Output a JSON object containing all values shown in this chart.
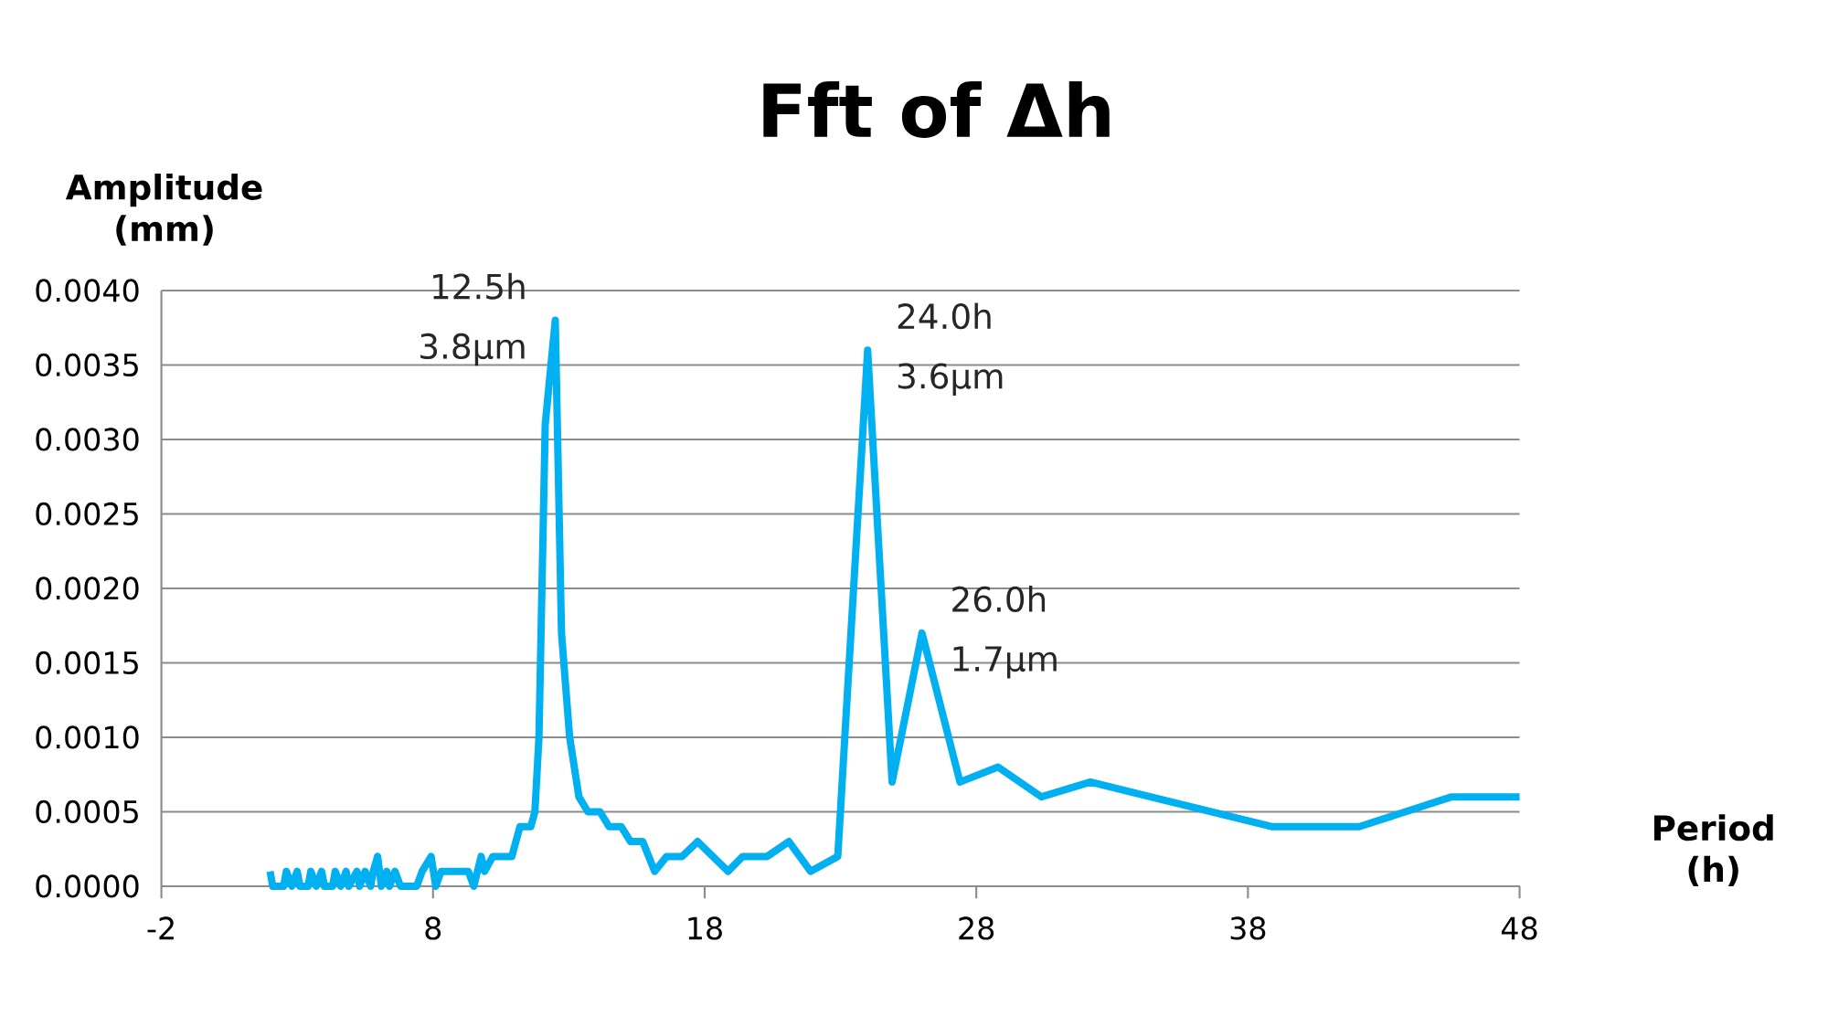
{
  "chart_data": {
    "type": "line",
    "title": "Fft of Δh",
    "xlabel": "Period (h)",
    "ylabel": "Amplitude (mm)",
    "x": [
      2.0,
      2.1,
      2.5,
      2.6,
      2.8,
      3.0,
      3.1,
      3.4,
      3.5,
      3.7,
      3.9,
      4.0,
      4.3,
      4.4,
      4.6,
      4.8,
      4.9,
      5.2,
      5.3,
      5.5,
      5.7,
      5.8,
      5.96,
      6.1,
      6.3,
      6.4,
      6.6,
      6.8,
      7.0,
      7.4,
      7.6,
      7.93,
      8.1,
      8.3,
      8.6,
      9.0,
      9.3,
      9.5,
      9.77,
      9.9,
      10.2,
      10.5,
      10.9,
      11.2,
      11.6,
      11.75,
      11.9,
      12.13,
      12.5,
      12.73,
      13.03,
      13.37,
      13.7,
      14.15,
      14.48,
      14.93,
      15.27,
      15.72,
      16.16,
      16.6,
      17.17,
      17.74,
      18.86,
      19.4,
      20.3,
      21.1,
      21.9,
      22.9,
      24.0,
      24.9,
      26.0,
      27.4,
      28.8,
      30.4,
      32.2,
      38.9,
      42.1,
      45.5,
      48.0
    ],
    "values": [
      0.0001,
      0.0,
      0.0,
      0.0001,
      0.0,
      0.0001,
      0.0,
      0.0,
      0.0001,
      0.0,
      0.0001,
      0.0,
      0.0,
      0.0001,
      0.0,
      0.0001,
      0.0,
      0.0001,
      0.0,
      0.0001,
      0.0,
      0.0001,
      0.0002,
      0.0,
      0.0001,
      0.0,
      0.0001,
      0.0,
      0.0,
      0.0,
      0.0001,
      0.0002,
      0.0,
      0.0001,
      0.0001,
      0.0001,
      0.0001,
      0.0,
      0.0002,
      0.0001,
      0.0002,
      0.0002,
      0.0002,
      0.0004,
      0.0004,
      0.0005,
      0.001,
      0.0031,
      0.0038,
      0.0017,
      0.001,
      0.0006,
      0.0005,
      0.0005,
      0.0004,
      0.0004,
      0.0003,
      0.0003,
      0.0001,
      0.0002,
      0.0002,
      0.0003,
      0.0001,
      0.0002,
      0.0002,
      0.0003,
      0.0001,
      0.0002,
      0.0036,
      0.0007,
      0.0017,
      0.0007,
      0.0008,
      0.0006,
      0.0007,
      0.0004,
      0.0004,
      0.0006,
      0.0006
    ],
    "color": "#00b0f0",
    "xlim": [
      -2,
      48
    ],
    "ylim": [
      0,
      0.004
    ],
    "xticks": [
      -2,
      8,
      18,
      28,
      38,
      48
    ],
    "yticks": [
      {
        "value": 0,
        "label": "0.0000"
      },
      {
        "value": 0.0005,
        "label": "0.0005"
      },
      {
        "value": 0.001,
        "label": "0.0010"
      },
      {
        "value": 0.0015,
        "label": "0.0015"
      },
      {
        "value": 0.002,
        "label": "0.0020"
      },
      {
        "value": 0.0025,
        "label": "0.0025"
      },
      {
        "value": 0.003,
        "label": "0.0030"
      },
      {
        "value": 0.0035,
        "label": "0.0035"
      },
      {
        "value": 0.004,
        "label": "0.0040"
      }
    ],
    "grid": "y",
    "annotations": [
      {
        "text": "12.5h",
        "x": 12.5,
        "y": 0.0038
      },
      {
        "text": "3.8μm",
        "x": 12.5,
        "y": 0.0038
      },
      {
        "text": "24.0h",
        "x": 24.0,
        "y": 0.0036
      },
      {
        "text": "3.6μm",
        "x": 24.0,
        "y": 0.0036
      },
      {
        "text": "26.0h",
        "x": 26.0,
        "y": 0.0017
      },
      {
        "text": "1.7μm",
        "x": 26.0,
        "y": 0.0017
      }
    ]
  }
}
